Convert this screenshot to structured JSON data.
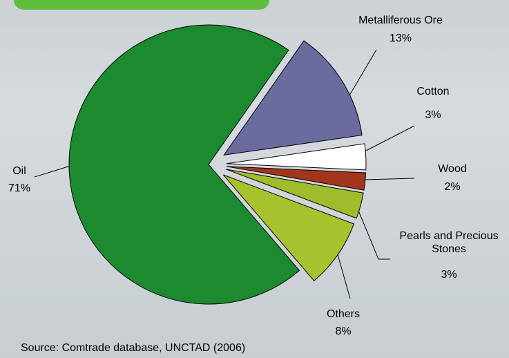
{
  "chart_data": {
    "type": "pie",
    "categories": [
      "Metalliferous Ore",
      "Cotton",
      "Wood",
      "Pearls and Precious Stones",
      "Others",
      "Oil"
    ],
    "values": [
      13,
      3,
      2,
      3,
      8,
      71
    ],
    "value_labels": [
      "13%",
      "3%",
      "2%",
      "3%",
      "8%",
      "71%"
    ],
    "colors": [
      "#6b6b9f",
      "#ffffff",
      "#a2361d",
      "#9fbd2b",
      "#a6c32f",
      "#1c8b30"
    ],
    "source": "Source: Comtrade database, UNCTAD (2006)"
  }
}
